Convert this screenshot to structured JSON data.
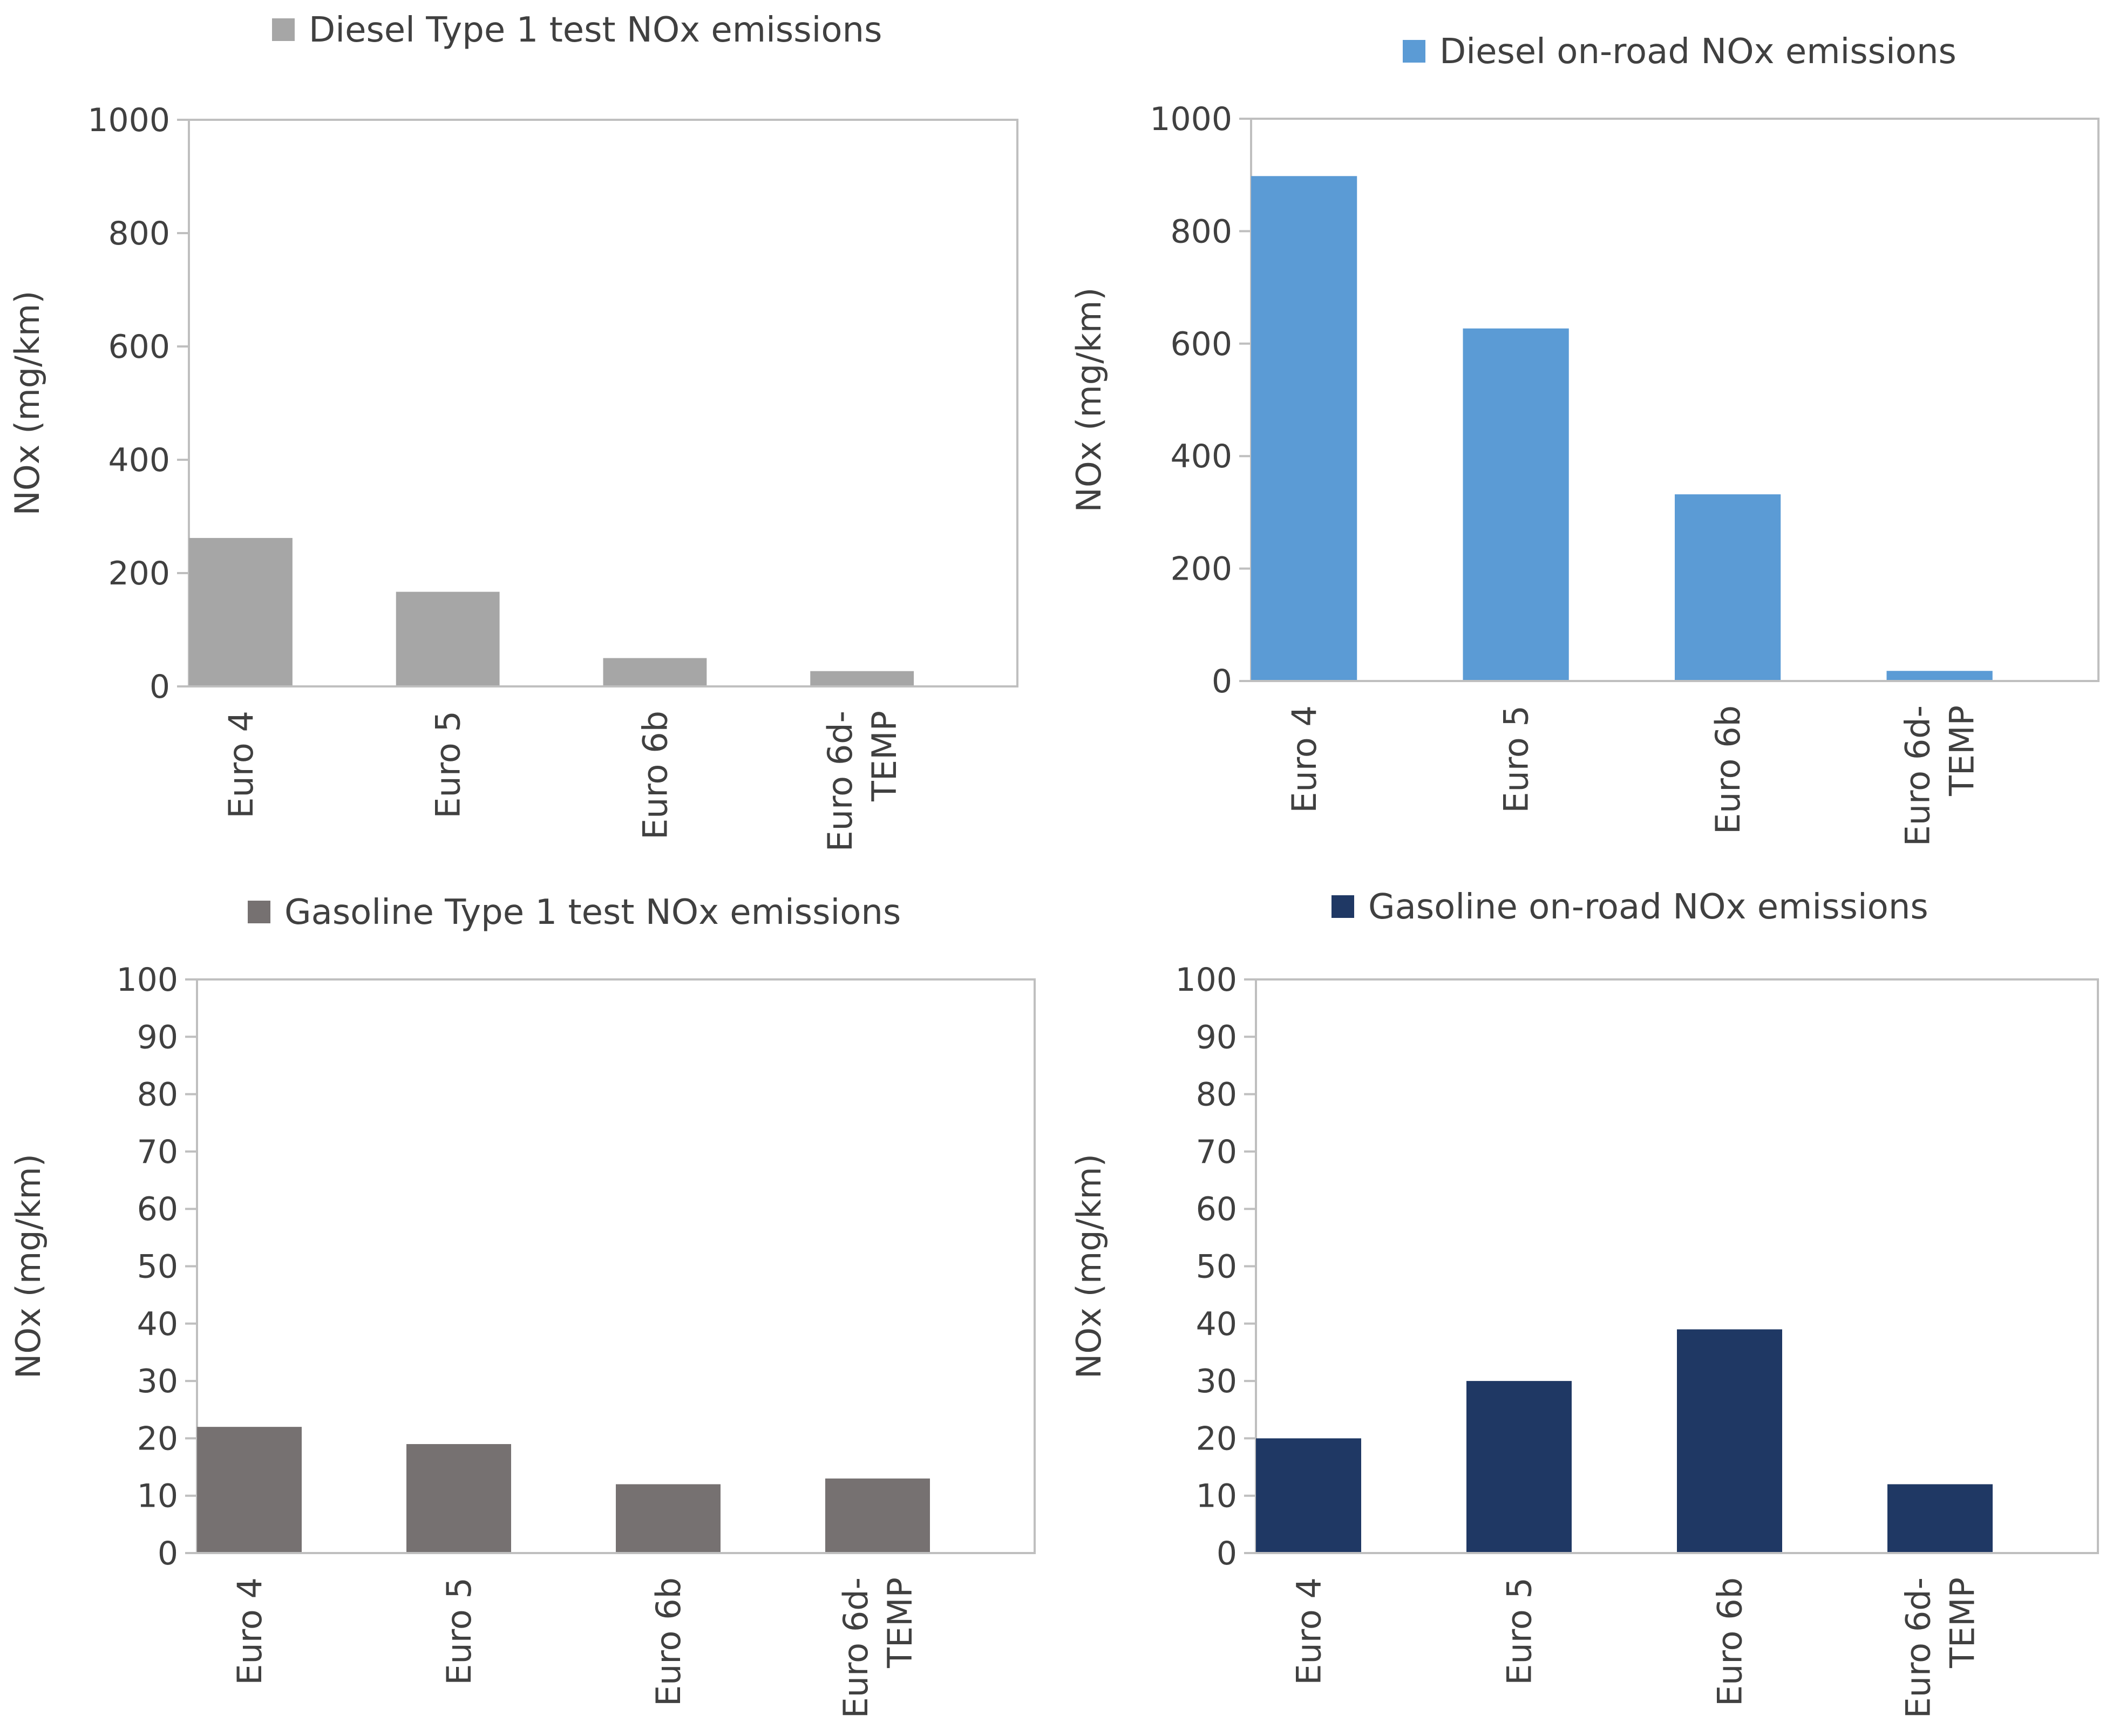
{
  "chart_data": [
    {
      "id": "diesel-type1",
      "type": "bar",
      "series_name": "Diesel Type 1 test NOx emissions",
      "color": "#a6a6a6",
      "categories": [
        "Euro 4",
        "Euro 5",
        "Euro 6b",
        "Euro 6d-\nTEMP"
      ],
      "values": [
        262,
        167,
        50,
        27
      ],
      "ylabel": "NOx (mg/km)",
      "xlabel": "",
      "ylim": [
        0,
        1000
      ],
      "yticks": [
        0,
        200,
        400,
        600,
        800,
        1000
      ],
      "legend": "top",
      "grid": false
    },
    {
      "id": "diesel-onroad",
      "type": "bar",
      "series_name": "Diesel on-road NOx emissions",
      "color": "#5b9bd5",
      "categories": [
        "Euro 4",
        "Euro 5",
        "Euro 6b",
        "Euro 6d-\nTEMP"
      ],
      "values": [
        898,
        627,
        332,
        18
      ],
      "ylabel": "NOx  (mg/km)",
      "xlabel": "",
      "ylim": [
        0,
        1000
      ],
      "yticks": [
        0,
        200,
        400,
        600,
        800,
        1000
      ],
      "legend": "top",
      "grid": false
    },
    {
      "id": "gasoline-type1",
      "type": "bar",
      "series_name": "Gasoline Type 1 test NOx emissions",
      "color": "#767171",
      "categories": [
        "Euro 4",
        "Euro 5",
        "Euro 6b",
        "Euro 6d-\nTEMP"
      ],
      "values": [
        22,
        19,
        12,
        13
      ],
      "ylabel": "NOx  (mg/km)",
      "xlabel": "",
      "ylim": [
        0,
        100
      ],
      "yticks": [
        0,
        10,
        20,
        30,
        40,
        50,
        60,
        70,
        80,
        90,
        100
      ],
      "legend": "top",
      "grid": false
    },
    {
      "id": "gasoline-onroad",
      "type": "bar",
      "series_name": "Gasoline on-road NOx emissions",
      "color": "#1f3864",
      "categories": [
        "Euro 4",
        "Euro 5",
        "Euro 6b",
        "Euro 6d-\nTEMP"
      ],
      "values": [
        20,
        30,
        39,
        12
      ],
      "ylabel": "NOx  (mg/km)",
      "xlabel": "",
      "ylim": [
        0,
        100
      ],
      "yticks": [
        0,
        10,
        20,
        30,
        40,
        50,
        60,
        70,
        80,
        90,
        100
      ],
      "legend": "top",
      "grid": false
    }
  ]
}
